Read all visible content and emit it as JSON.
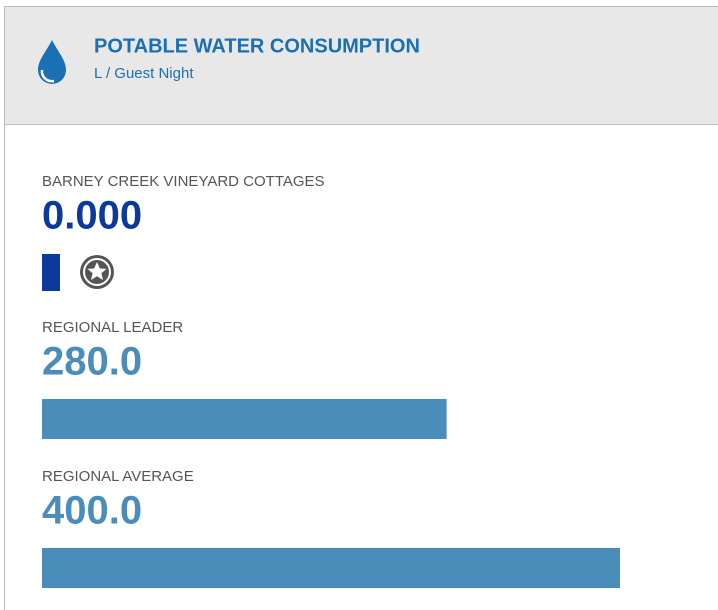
{
  "chart_data": {
    "type": "hbar",
    "title": "POTABLE WATER CONSUMPTION",
    "subtitle": "L / Guest Night",
    "categories": [
      "BARNEY CREEK VINEYARD COTTAGES",
      "REGIONAL LEADER",
      "REGIONAL AVERAGE"
    ],
    "values": [
      0,
      280,
      400
    ],
    "value_labels": [
      "0.000",
      "280.0",
      "400.0"
    ],
    "colors": [
      "#0b3a9b",
      "#4a8dbb",
      "#4a8dbb"
    ]
  }
}
